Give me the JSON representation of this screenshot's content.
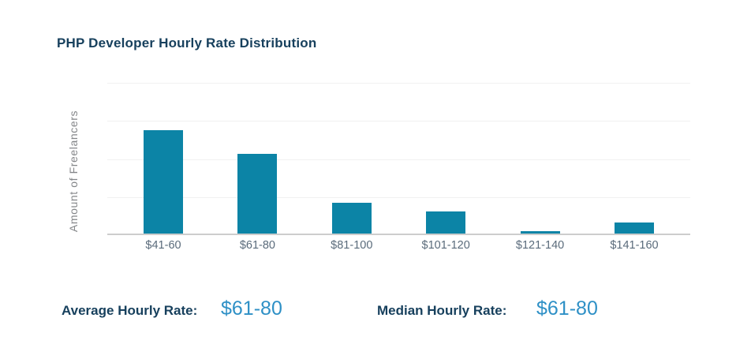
{
  "title": "PHP Developer Hourly Rate Distribution",
  "chart_data": {
    "type": "bar",
    "title": "PHP Developer Hourly Rate Distribution",
    "categories": [
      "$41-60",
      "$61-80",
      "$81-100",
      "$101-120",
      "$121-140",
      "$141-160"
    ],
    "values": [
      69,
      53,
      21,
      15,
      2,
      8
    ],
    "xlabel": "",
    "ylabel": "Amount of Freelancers",
    "ylim": [
      0,
      100
    ],
    "grid": true,
    "gridline_positions_pct": [
      0,
      25,
      50,
      75
    ],
    "legend": "none",
    "bar_color": "#0c84a6"
  },
  "stats": {
    "average": {
      "label": "Average Hourly Rate:",
      "value": "$61-80"
    },
    "median": {
      "label": "Median Hourly Rate:",
      "value": "$61-80"
    }
  },
  "colors": {
    "bar_teal": "#0c84a6",
    "stat_value_blue": "#2e90c6",
    "heading_navy": "#17405d",
    "x_tick_label": "#5a6b7b",
    "y_axis_label_gray": "#848689",
    "gridline": "#f1f1f1",
    "axis_line": "#cdcdcd",
    "background": "#ffffff"
  }
}
